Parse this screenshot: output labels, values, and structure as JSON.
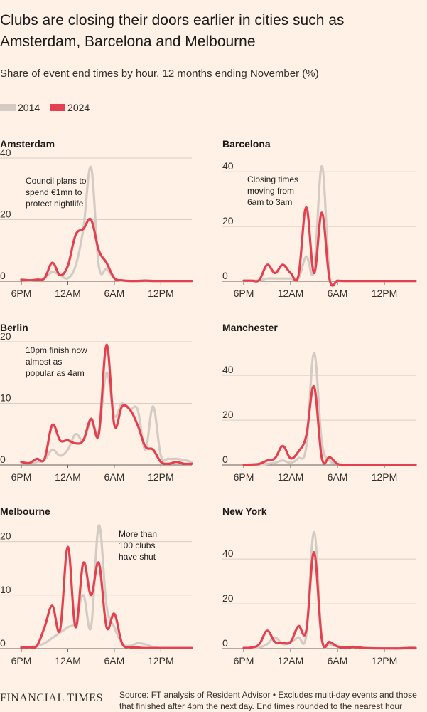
{
  "title": "Clubs are closing their doors earlier in cities such as Amsterdam, Barcelona and Melbourne",
  "subtitle": "Share of event end times by hour, 12 months ending November (%)",
  "legend": [
    {
      "label": "2014",
      "color": "#d4ccc4"
    },
    {
      "label": "2024",
      "color": "#e5404f"
    }
  ],
  "footer": {
    "logo": "FINANCIAL TIMES",
    "source": "Source: FT analysis of Resident Advisor • Excludes multi-day events and those that finished after 4pm the next day. End times rounded to the nearest hour"
  },
  "chart_data": [
    {
      "type": "line",
      "city": "Amsterdam",
      "x_tick_labels": [
        "6PM",
        "12AM",
        "6AM",
        "12PM"
      ],
      "y_ticks": [
        0,
        20,
        40
      ],
      "ylim": [
        0,
        40
      ],
      "annotation": [
        "Council plans to",
        "spend €1mn to",
        "protect nightlife"
      ],
      "x_hours": [
        0,
        1,
        2,
        3,
        4,
        5,
        6,
        7,
        8,
        9,
        10,
        11,
        12,
        13,
        14,
        15,
        16,
        17,
        18,
        19,
        20,
        21,
        22
      ],
      "series": [
        {
          "name": "2014",
          "values": [
            0.5,
            0.3,
            0.5,
            1,
            3,
            2,
            1,
            5,
            17,
            37,
            5,
            4,
            1,
            0.2,
            0.1,
            0.1,
            0.1,
            0.1,
            0.1,
            0.1,
            0.1,
            0.1,
            0.1
          ]
        },
        {
          "name": "2024",
          "values": [
            0.5,
            0.3,
            0.5,
            1,
            6,
            2,
            5,
            15,
            17,
            20,
            10,
            6,
            1,
            0.3,
            0.1,
            0.1,
            0.2,
            0.1,
            0.1,
            0.1,
            0.1,
            0.1,
            0.1
          ]
        }
      ]
    },
    {
      "type": "line",
      "city": "Barcelona",
      "x_tick_labels": [
        "6PM",
        "12AM",
        "6AM",
        "12PM"
      ],
      "y_ticks": [
        0,
        20,
        40
      ],
      "ylim": [
        0,
        45
      ],
      "annotation": [
        "Closing times",
        "moving from",
        "6am to 3am"
      ],
      "x_hours": [
        0,
        1,
        2,
        3,
        4,
        5,
        6,
        7,
        8,
        9,
        10,
        11,
        12,
        13,
        14,
        15,
        16,
        17,
        18,
        19,
        20,
        21,
        22
      ],
      "series": [
        {
          "name": "2014",
          "values": [
            0.2,
            0.2,
            0.3,
            1,
            1,
            1,
            1,
            1,
            9,
            4,
            42,
            2,
            0.2,
            0.1,
            0.1,
            0.1,
            0.1,
            0.1,
            0.1,
            0.1,
            0.1,
            0.1,
            0.1
          ]
        },
        {
          "name": "2024",
          "values": [
            0.2,
            0.2,
            0.5,
            6,
            3,
            6,
            3,
            2,
            27,
            3,
            25,
            0.5,
            0.2,
            0.1,
            0.1,
            0.1,
            0.1,
            0.1,
            0.1,
            0.1,
            0.1,
            0.1,
            0.1
          ]
        }
      ]
    },
    {
      "type": "line",
      "city": "Berlin",
      "x_tick_labels": [
        "6PM",
        "12AM",
        "6AM",
        "12PM"
      ],
      "y_ticks": [
        0,
        10,
        20
      ],
      "ylim": [
        0,
        20
      ],
      "annotation": [
        "10pm finish now",
        "almost as",
        "popular as 4am"
      ],
      "x_hours": [
        0,
        1,
        2,
        3,
        4,
        5,
        6,
        7,
        8,
        9,
        10,
        11,
        12,
        13,
        14,
        15,
        16,
        17,
        18,
        19,
        20,
        21,
        22
      ],
      "series": [
        {
          "name": "2014",
          "values": [
            0.5,
            0.3,
            0.5,
            0.8,
            2.5,
            1.5,
            2.5,
            5,
            4,
            7,
            5.5,
            15,
            8,
            10,
            9,
            9,
            2.5,
            9.5,
            1.5,
            1,
            1,
            0.8,
            0.5
          ]
        },
        {
          "name": "2024",
          "values": [
            0.5,
            0.3,
            1,
            1,
            6.5,
            4,
            4,
            3.5,
            4,
            7.5,
            5,
            19.5,
            6.5,
            9.5,
            9,
            6.5,
            3,
            2.5,
            0.5,
            0.2,
            0.5,
            0.2,
            0.2
          ]
        }
      ]
    },
    {
      "type": "line",
      "city": "Manchester",
      "x_tick_labels": [
        "6PM",
        "12AM",
        "6AM",
        "12PM"
      ],
      "y_ticks": [
        0,
        20,
        40
      ],
      "ylim": [
        0,
        55
      ],
      "annotation": null,
      "x_hours": [
        0,
        1,
        2,
        3,
        4,
        5,
        6,
        7,
        8,
        9,
        10,
        11,
        12,
        13,
        14,
        15,
        16,
        17,
        18,
        19,
        20,
        21,
        22
      ],
      "series": [
        {
          "name": "2014",
          "values": [
            0.1,
            0.1,
            0.2,
            0.5,
            1,
            2,
            1,
            3,
            8,
            50,
            10,
            2,
            0.5,
            0.1,
            0.1,
            0.1,
            0.1,
            0.1,
            0.1,
            0.1,
            0.1,
            0.1,
            0.1
          ]
        },
        {
          "name": "2024",
          "values": [
            0.1,
            0.2,
            0.5,
            2,
            3,
            8.5,
            3,
            6,
            13,
            35,
            3,
            3.5,
            0.5,
            0.1,
            0.1,
            0.1,
            0.1,
            0.1,
            0.1,
            0.1,
            0.1,
            0.1,
            0.1
          ]
        }
      ]
    },
    {
      "type": "line",
      "city": "Melbourne",
      "x_tick_labels": [
        "6PM",
        "12AM",
        "6AM",
        "12PM"
      ],
      "y_ticks": [
        0,
        10,
        20
      ],
      "ylim": [
        0,
        23
      ],
      "annotation": [
        "More than",
        "100 clubs",
        "have shut"
      ],
      "x_hours": [
        0,
        1,
        2,
        3,
        4,
        5,
        6,
        7,
        8,
        9,
        10,
        11,
        12,
        13,
        14,
        15,
        16,
        17,
        18,
        19,
        20,
        21,
        22
      ],
      "series": [
        {
          "name": "2014",
          "values": [
            0.2,
            0.3,
            0.5,
            1,
            2,
            3,
            4,
            5,
            10,
            4,
            23,
            8,
            4,
            1,
            0.5,
            1,
            0.8,
            0.3,
            0.1,
            0.1,
            0.1,
            0.1,
            0.1
          ]
        },
        {
          "name": "2024",
          "values": [
            0.2,
            0.3,
            0.5,
            4,
            8,
            3.5,
            19,
            4,
            16,
            10,
            16,
            4,
            6.5,
            1,
            0.3,
            0.2,
            0.1,
            0.1,
            0.1,
            0.1,
            0.1,
            0.1,
            0.1
          ]
        }
      ]
    },
    {
      "type": "line",
      "city": "New York",
      "x_tick_labels": [
        "6PM",
        "12AM",
        "6AM",
        "12PM"
      ],
      "y_ticks": [
        0,
        20,
        40
      ],
      "ylim": [
        0,
        55
      ],
      "annotation": null,
      "x_hours": [
        0,
        1,
        2,
        3,
        4,
        5,
        6,
        7,
        8,
        9,
        10,
        11,
        12,
        13,
        14,
        15,
        16,
        17,
        18,
        19,
        20,
        21,
        22
      ],
      "series": [
        {
          "name": "2014",
          "values": [
            0.2,
            0.2,
            0.5,
            2,
            5,
            2,
            3,
            5,
            6,
            52,
            5,
            2,
            1,
            0.5,
            0.8,
            0.3,
            0.2,
            0.2,
            0.1,
            0.1,
            0.1,
            0.1,
            0.1
          ]
        },
        {
          "name": "2024",
          "values": [
            0.3,
            0.5,
            2,
            8,
            3,
            2.5,
            3,
            10,
            8,
            43,
            4,
            3,
            1,
            0.5,
            0.8,
            0.4,
            0.2,
            0.1,
            0.1,
            0.1,
            0.1,
            0.3,
            0.3
          ]
        }
      ]
    }
  ]
}
